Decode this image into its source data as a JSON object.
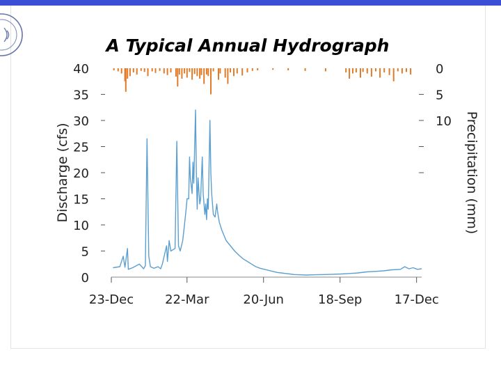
{
  "colors": {
    "top_band": "#3b4fd6",
    "discharge_line": "#5b9fd0",
    "precip_bars": "#e07b2a",
    "logo": "#4a5a9a"
  },
  "logo": {
    "icon": "university-seal-icon"
  },
  "chart_data": {
    "type": "line",
    "title": "A Typical Annual Hydrograph",
    "ylabel": "Discharge (cfs)",
    "y2label": "Precipitation (mm)",
    "ylim": [
      0,
      40
    ],
    "y2lim": [
      0,
      40
    ],
    "y2_inverted": true,
    "x_range": [
      0,
      365
    ],
    "yticks": [
      0,
      5,
      10,
      15,
      20,
      25,
      30,
      35,
      40
    ],
    "ytick_labels": [
      "0",
      "5",
      "10",
      "15",
      "20",
      "25",
      "30",
      "35",
      "40"
    ],
    "y2ticks": [
      0,
      5,
      10,
      15,
      20
    ],
    "y2tick_labels": [
      "0",
      "5",
      "10",
      "",
      ""
    ],
    "xticks": [
      0,
      89,
      179,
      269,
      359
    ],
    "xtick_labels": [
      "23-Dec",
      "22-Mar",
      "20-Jun",
      "18-Sep",
      "17-Dec"
    ],
    "series": [
      {
        "name": "Discharge",
        "axis": "left",
        "points": [
          [
            2,
            1.8
          ],
          [
            10,
            2.0
          ],
          [
            14,
            4.0
          ],
          [
            16,
            1.9
          ],
          [
            19,
            5.5
          ],
          [
            20,
            1.5
          ],
          [
            25,
            1.8
          ],
          [
            33,
            2.5
          ],
          [
            38,
            1.6
          ],
          [
            40,
            2.2
          ],
          [
            42,
            26.5
          ],
          [
            44,
            4.0
          ],
          [
            46,
            2.0
          ],
          [
            50,
            1.7
          ],
          [
            55,
            2.0
          ],
          [
            58,
            1.6
          ],
          [
            60,
            2.5
          ],
          [
            65,
            6.0
          ],
          [
            66,
            3.0
          ],
          [
            68,
            7.0
          ],
          [
            70,
            5.0
          ],
          [
            75,
            5.5
          ],
          [
            77,
            26.0
          ],
          [
            79,
            6.0
          ],
          [
            81,
            5.0
          ],
          [
            84,
            7.0
          ],
          [
            86,
            10.0
          ],
          [
            88,
            13.0
          ],
          [
            89,
            15.0
          ],
          [
            91,
            15.0
          ],
          [
            92,
            23.0
          ],
          [
            93,
            19.0
          ],
          [
            95,
            16.0
          ],
          [
            96,
            22.0
          ],
          [
            97,
            18.0
          ],
          [
            99,
            32.0
          ],
          [
            100,
            20.0
          ],
          [
            101,
            13.0
          ],
          [
            102,
            19.0
          ],
          [
            104,
            14.0
          ],
          [
            105,
            15.0
          ],
          [
            107,
            23.0
          ],
          [
            108,
            16.0
          ],
          [
            110,
            12.0
          ],
          [
            111,
            14.0
          ],
          [
            112,
            11.0
          ],
          [
            113,
            15.0
          ],
          [
            114,
            13.0
          ],
          [
            116,
            30.0
          ],
          [
            117,
            20.0
          ],
          [
            118,
            16.0
          ],
          [
            120,
            12.0
          ],
          [
            122,
            11.5
          ],
          [
            124,
            14.0
          ],
          [
            125,
            12.5
          ],
          [
            127,
            10.5
          ],
          [
            130,
            9.0
          ],
          [
            135,
            7.0
          ],
          [
            140,
            6.0
          ],
          [
            145,
            5.0
          ],
          [
            150,
            4.2
          ],
          [
            155,
            3.5
          ],
          [
            160,
            3.0
          ],
          [
            165,
            2.5
          ],
          [
            170,
            2.0
          ],
          [
            175,
            1.7
          ],
          [
            180,
            1.5
          ],
          [
            185,
            1.3
          ],
          [
            190,
            1.1
          ],
          [
            195,
            0.9
          ],
          [
            200,
            0.8
          ],
          [
            205,
            0.7
          ],
          [
            210,
            0.6
          ],
          [
            215,
            0.5
          ],
          [
            220,
            0.45
          ],
          [
            230,
            0.4
          ],
          [
            240,
            0.45
          ],
          [
            250,
            0.5
          ],
          [
            260,
            0.55
          ],
          [
            270,
            0.6
          ],
          [
            280,
            0.7
          ],
          [
            290,
            0.8
          ],
          [
            300,
            1.0
          ],
          [
            310,
            1.1
          ],
          [
            320,
            1.2
          ],
          [
            330,
            1.4
          ],
          [
            340,
            1.5
          ],
          [
            345,
            2.0
          ],
          [
            350,
            1.6
          ],
          [
            355,
            1.8
          ],
          [
            360,
            1.5
          ],
          [
            365,
            1.6
          ]
        ]
      },
      {
        "name": "Precipitation",
        "axis": "right",
        "bars": [
          [
            3,
            0.4
          ],
          [
            8,
            0.6
          ],
          [
            12,
            1.0
          ],
          [
            16,
            2.5
          ],
          [
            17,
            4.5
          ],
          [
            19,
            2.0
          ],
          [
            22,
            1.5
          ],
          [
            26,
            0.8
          ],
          [
            30,
            1.2
          ],
          [
            35,
            0.5
          ],
          [
            39,
            0.7
          ],
          [
            43,
            1.5
          ],
          [
            48,
            0.6
          ],
          [
            52,
            0.9
          ],
          [
            57,
            0.5
          ],
          [
            62,
            1.0
          ],
          [
            66,
            1.3
          ],
          [
            70,
            0.8
          ],
          [
            76,
            1.6
          ],
          [
            78,
            3.5
          ],
          [
            80,
            1.2
          ],
          [
            83,
            2.0
          ],
          [
            86,
            1.0
          ],
          [
            89,
            1.8
          ],
          [
            92,
            0.7
          ],
          [
            95,
            2.2
          ],
          [
            98,
            1.1
          ],
          [
            101,
            1.5
          ],
          [
            104,
            2.0
          ],
          [
            106,
            1.3
          ],
          [
            109,
            3.0
          ],
          [
            112,
            1.2
          ],
          [
            114,
            1.5
          ],
          [
            117,
            5.0
          ],
          [
            120,
            0.6
          ],
          [
            126,
            2.2
          ],
          [
            128,
            1.0
          ],
          [
            134,
            1.8
          ],
          [
            137,
            3.0
          ],
          [
            140,
            0.8
          ],
          [
            144,
            1.5
          ],
          [
            148,
            1.0
          ],
          [
            154,
            1.4
          ],
          [
            160,
            0.8
          ],
          [
            166,
            0.5
          ],
          [
            172,
            0.4
          ],
          [
            190,
            0.3
          ],
          [
            208,
            0.4
          ],
          [
            228,
            0.5
          ],
          [
            252,
            0.6
          ],
          [
            276,
            0.8
          ],
          [
            280,
            2.0
          ],
          [
            284,
            1.0
          ],
          [
            288,
            0.8
          ],
          [
            293,
            1.8
          ],
          [
            296,
            0.7
          ],
          [
            301,
            1.0
          ],
          [
            306,
            1.6
          ],
          [
            311,
            0.6
          ],
          [
            316,
            1.8
          ],
          [
            321,
            0.8
          ],
          [
            327,
            1.3
          ],
          [
            332,
            2.5
          ],
          [
            337,
            0.6
          ],
          [
            342,
            1.0
          ],
          [
            347,
            0.7
          ],
          [
            352,
            1.2
          ]
        ]
      }
    ]
  }
}
